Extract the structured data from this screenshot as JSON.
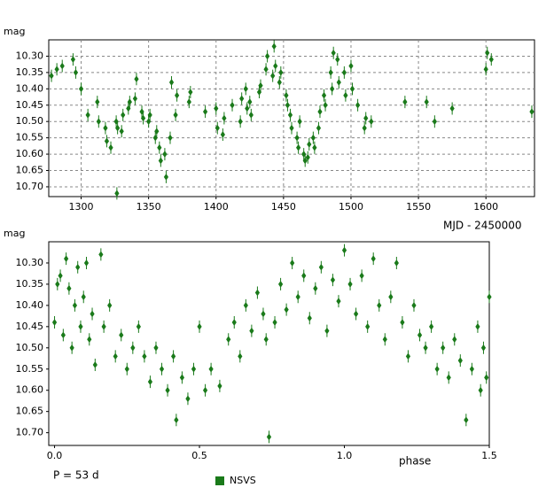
{
  "chart_data": [
    {
      "type": "scatter",
      "y_label": "mag",
      "x_label": "MJD - 2450000",
      "grid": true,
      "y_inverted": true,
      "xlim": [
        1276,
        1636
      ],
      "xticks": [
        1300,
        1350,
        1400,
        1450,
        1500,
        1550,
        1600
      ],
      "ylim": [
        10.25,
        10.73
      ],
      "yticks": [
        {
          "value": 10.3,
          "label": "10.30"
        },
        {
          "value": 10.35,
          "label": "10.35"
        },
        {
          "value": 10.4,
          "label": "10.40"
        },
        {
          "value": 10.45,
          "label": "10.45"
        },
        {
          "value": 10.5,
          "label": "10.50"
        },
        {
          "value": 10.55,
          "label": "10.55"
        },
        {
          "value": 10.6,
          "label": "10.60"
        },
        {
          "value": 10.65,
          "label": "10.65"
        },
        {
          "value": 10.7,
          "label": "10.70"
        }
      ],
      "series": [
        {
          "color": "#1a7a1a",
          "x": [
            1278,
            1282,
            1286,
            1294,
            1296,
            1300,
            1305,
            1312,
            1313,
            1318,
            1319,
            1322,
            1326,
            1327,
            1326.5,
            1330,
            1331,
            1335,
            1336,
            1340,
            1341,
            1345,
            1346,
            1350,
            1351,
            1355,
            1356,
            1358,
            1359,
            1362,
            1363,
            1366,
            1367,
            1370,
            1371,
            1380,
            1381,
            1392,
            1400,
            1401,
            1405,
            1406,
            1412,
            1418,
            1419,
            1422,
            1423,
            1425,
            1426,
            1432,
            1433,
            1437,
            1438,
            1442,
            1443,
            1444,
            1447,
            1448,
            1452,
            1453,
            1455,
            1456,
            1460,
            1461,
            1462,
            1465,
            1466,
            1468,
            1469,
            1472,
            1473,
            1476,
            1477,
            1480,
            1481,
            1485,
            1486,
            1487,
            1490,
            1491,
            1495,
            1496,
            1500,
            1501,
            1505,
            1510,
            1511,
            1515,
            1540,
            1556,
            1562,
            1575,
            1600,
            1601,
            1604,
            1634
          ],
          "values": [
            10.36,
            10.34,
            10.33,
            10.31,
            10.35,
            10.4,
            10.48,
            10.44,
            10.5,
            10.52,
            10.56,
            10.58,
            10.5,
            10.52,
            10.72,
            10.53,
            10.48,
            10.46,
            10.44,
            10.43,
            10.37,
            10.47,
            10.49,
            10.5,
            10.48,
            10.55,
            10.53,
            10.58,
            10.62,
            10.6,
            10.67,
            10.55,
            10.38,
            10.48,
            10.42,
            10.44,
            10.41,
            10.47,
            10.46,
            10.52,
            10.54,
            10.49,
            10.45,
            10.5,
            10.43,
            10.4,
            10.46,
            10.44,
            10.48,
            10.41,
            10.39,
            10.34,
            10.3,
            10.36,
            10.27,
            10.33,
            10.38,
            10.35,
            10.42,
            10.45,
            10.48,
            10.52,
            10.55,
            10.58,
            10.5,
            10.6,
            10.62,
            10.61,
            10.57,
            10.55,
            10.58,
            10.52,
            10.47,
            10.42,
            10.45,
            10.35,
            10.4,
            10.29,
            10.31,
            10.38,
            10.35,
            10.42,
            10.33,
            10.4,
            10.45,
            10.52,
            10.49,
            10.5,
            10.44,
            10.44,
            10.5,
            10.46,
            10.34,
            10.29,
            10.31,
            10.47
          ]
        }
      ]
    },
    {
      "type": "scatter",
      "y_label": "mag",
      "x_label": "phase",
      "annotation": "P = 53 d",
      "grid": false,
      "y_inverted": true,
      "xlim": [
        -0.02,
        1.5
      ],
      "xticks": [
        {
          "value": 0,
          "label": "0.0"
        },
        {
          "value": 0.5,
          "label": "0.5"
        },
        {
          "value": 1,
          "label": "1.0"
        },
        {
          "value": 1.5,
          "label": "1.5"
        }
      ],
      "ylim": [
        10.25,
        10.73
      ],
      "yticks": [
        {
          "value": 10.3,
          "label": "10.30"
        },
        {
          "value": 10.35,
          "label": "10.35"
        },
        {
          "value": 10.4,
          "label": "10.40"
        },
        {
          "value": 10.45,
          "label": "10.45"
        },
        {
          "value": 10.5,
          "label": "10.50"
        },
        {
          "value": 10.55,
          "label": "10.55"
        },
        {
          "value": 10.6,
          "label": "10.60"
        },
        {
          "value": 10.65,
          "label": "10.65"
        },
        {
          "value": 10.7,
          "label": "10.70"
        }
      ],
      "series": [
        {
          "name": "NSVS",
          "color": "#1a7a1a",
          "x": [
            0.0,
            0.01,
            0.02,
            0.03,
            0.04,
            0.05,
            0.06,
            0.07,
            0.08,
            0.09,
            0.1,
            0.11,
            0.12,
            0.13,
            0.14,
            0.16,
            0.17,
            0.19,
            0.21,
            0.23,
            0.25,
            0.27,
            0.29,
            0.31,
            0.33,
            0.35,
            0.37,
            0.39,
            0.41,
            0.42,
            0.44,
            0.46,
            0.48,
            0.5,
            0.52,
            0.54,
            0.57,
            0.6,
            0.62,
            0.64,
            0.66,
            0.68,
            0.7,
            0.72,
            0.73,
            0.74,
            0.76,
            0.78,
            0.8,
            0.82,
            0.84,
            0.86,
            0.88,
            0.9,
            0.92,
            0.94,
            0.96,
            0.98,
            1.0,
            1.02,
            1.04,
            1.06,
            1.08,
            1.1,
            1.12,
            1.14,
            1.16,
            1.18,
            1.2,
            1.22,
            1.24,
            1.26,
            1.28,
            1.3,
            1.32,
            1.34,
            1.36,
            1.38,
            1.4,
            1.42,
            1.44,
            1.46,
            1.47,
            1.48,
            1.49,
            1.5
          ],
          "values": [
            10.44,
            10.35,
            10.33,
            10.47,
            10.29,
            10.36,
            10.5,
            10.4,
            10.31,
            10.45,
            10.38,
            10.3,
            10.48,
            10.42,
            10.54,
            10.28,
            10.45,
            10.4,
            10.52,
            10.47,
            10.55,
            10.5,
            10.45,
            10.52,
            10.58,
            10.5,
            10.55,
            10.6,
            10.52,
            10.67,
            10.57,
            10.62,
            10.55,
            10.45,
            10.6,
            10.55,
            10.59,
            10.48,
            10.44,
            10.52,
            10.4,
            10.46,
            10.37,
            10.42,
            10.48,
            10.71,
            10.44,
            10.35,
            10.41,
            10.3,
            10.38,
            10.33,
            10.43,
            10.36,
            10.31,
            10.46,
            10.34,
            10.39,
            10.27,
            10.35,
            10.42,
            10.33,
            10.45,
            10.29,
            10.4,
            10.48,
            10.38,
            10.3,
            10.44,
            10.52,
            10.4,
            10.47,
            10.5,
            10.45,
            10.55,
            10.5,
            10.57,
            10.48,
            10.53,
            10.67,
            10.55,
            10.45,
            10.6,
            10.5,
            10.57,
            10.38
          ]
        }
      ]
    }
  ]
}
